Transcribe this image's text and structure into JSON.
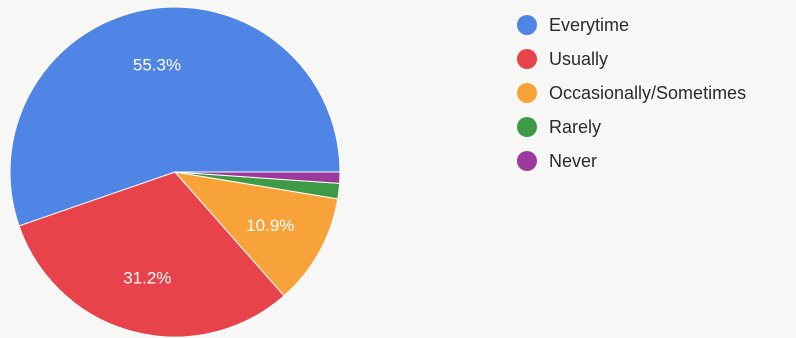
{
  "chart_data": {
    "type": "pie",
    "title": "",
    "slices": [
      {
        "name": "Everytime",
        "value": 55.3,
        "label": "55.3%",
        "color": "#4f86e6"
      },
      {
        "name": "Usually",
        "value": 31.2,
        "label": "31.2%",
        "color": "#e8434a"
      },
      {
        "name": "Occasionally/Sometimes",
        "value": 10.9,
        "label": "10.9%",
        "color": "#f7a33a"
      },
      {
        "name": "Rarely",
        "value": 1.5,
        "label": "",
        "color": "#3f9a45"
      },
      {
        "name": "Never",
        "value": 1.1,
        "label": "",
        "color": "#9b3a9c"
      }
    ],
    "start_angle_deg": 0,
    "direction": "clockwise",
    "legend_position": "right"
  }
}
